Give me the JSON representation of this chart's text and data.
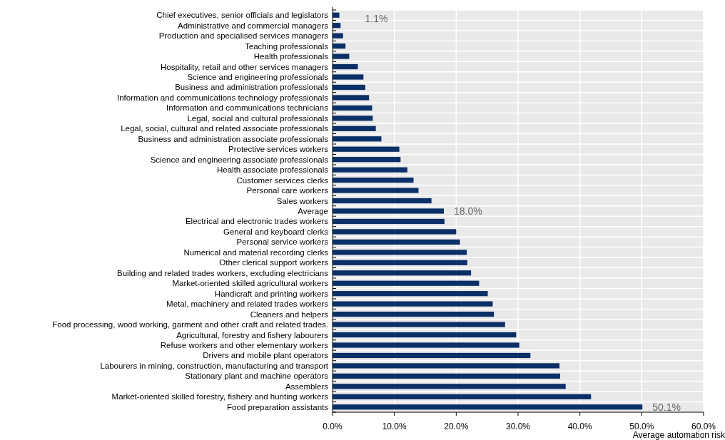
{
  "chart_data": {
    "type": "bar",
    "orientation": "horizontal",
    "xlabel": "Average automation risk",
    "categories": [
      "Chief executives, senior officials and legislators",
      "Administrative and commercial managers",
      "Production and specialised services managers",
      "Teaching professionals",
      "Health professionals",
      "Hospitality, retail and other services managers",
      "Science and engineering professionals",
      "Business and administration professionals",
      "Information and communications technology professionals",
      "Information and communications technicians",
      "Legal, social and cultural professionals",
      "Legal, social, cultural and related associate professionals",
      "Business and administration associate professionals",
      "Protective services workers",
      "Science and engineering associate professionals",
      "Health associate professionals",
      "Customer services clerks",
      "Personal care workers",
      "Sales workers",
      "Average",
      "Electrical and electronic trades workers",
      "General and keyboard clerks",
      "Personal service workers",
      "Numerical and material recording clerks",
      "Other clerical support workers",
      "Building and related trades workers, excluding electricians",
      "Market-oriented skilled agricultural workers",
      "Handicraft and printing workers",
      "Metal, machinery and related trades workers",
      "Cleaners and helpers",
      "Food processing, wood working, garment and other craft and related trades.",
      "Agricultural, forestry and fishery labourers",
      "Refuse workers and other elementary workers",
      "Drivers and mobile plant operators",
      "Labourers in mining, construction, manufacturing and transport",
      "Stationary plant and machine operators",
      "Assemblers",
      "Market-oriented skilled forestry, fishery and hunting workers",
      "Food preparation assistants"
    ],
    "values": [
      1.1,
      1.3,
      1.7,
      2.1,
      2.7,
      4.1,
      5.0,
      5.3,
      5.9,
      6.4,
      6.5,
      7.0,
      7.9,
      10.8,
      11.0,
      12.1,
      13.1,
      13.9,
      16.0,
      18.0,
      18.1,
      20.0,
      20.6,
      21.7,
      21.8,
      22.4,
      23.7,
      25.1,
      25.9,
      26.1,
      27.9,
      29.7,
      30.2,
      32.0,
      36.7,
      36.8,
      37.7,
      41.8,
      50.1
    ],
    "value_labels": [
      "1.1%",
      null,
      null,
      null,
      null,
      null,
      null,
      null,
      null,
      null,
      null,
      null,
      null,
      null,
      null,
      null,
      null,
      null,
      null,
      "18.0%",
      null,
      null,
      null,
      null,
      null,
      null,
      null,
      null,
      null,
      null,
      null,
      null,
      null,
      null,
      null,
      null,
      null,
      null,
      "50.1%"
    ],
    "color": "#0b3068",
    "xlim": [
      0,
      60
    ],
    "xticks": [
      {
        "value": 0,
        "label": "0.0%"
      },
      {
        "value": 10,
        "label": "10.0%"
      },
      {
        "value": 20,
        "label": "20.0%"
      },
      {
        "value": 30,
        "label": "30.0%"
      },
      {
        "value": 40,
        "label": "40.0%"
      },
      {
        "value": 50,
        "label": "50.0%"
      },
      {
        "value": 60,
        "label": "60.0%"
      }
    ],
    "grid": true
  }
}
